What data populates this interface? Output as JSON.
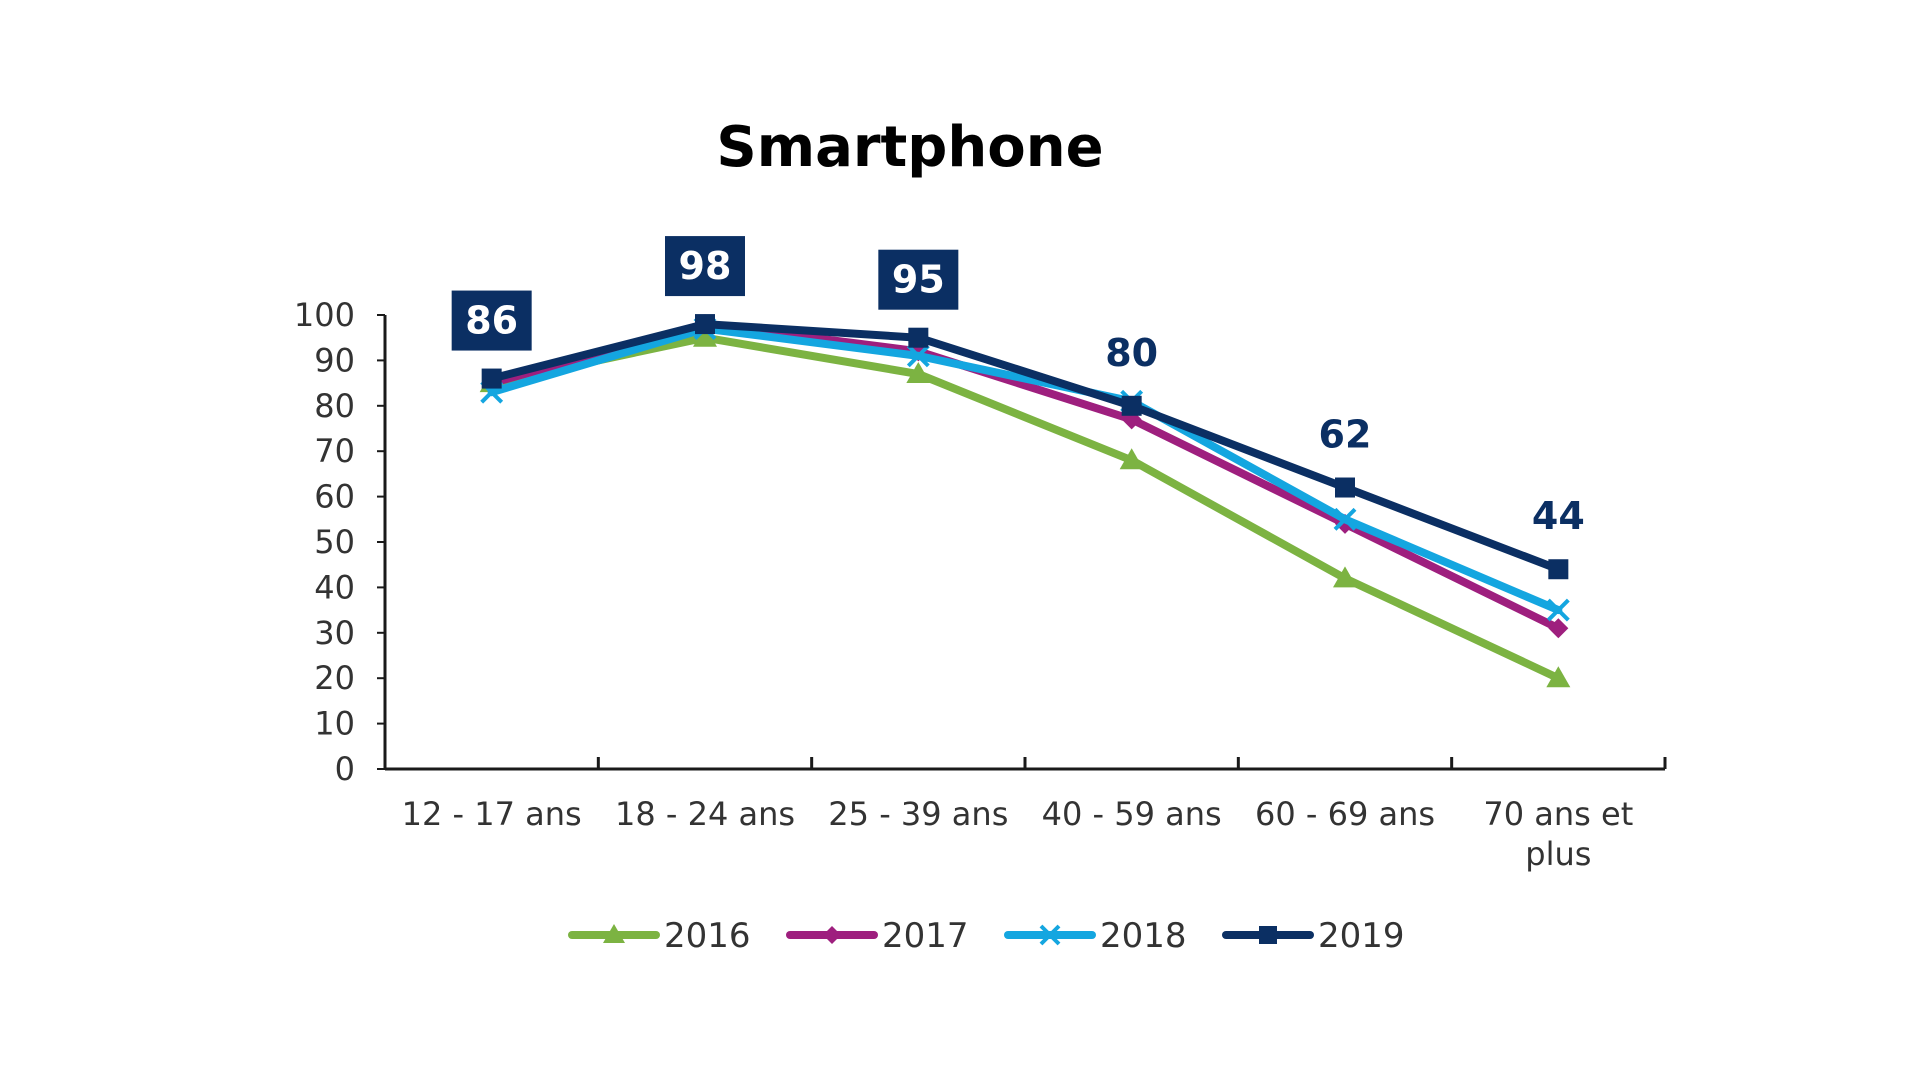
{
  "chart_data": {
    "type": "line",
    "title": "Smartphone",
    "xlabel": "",
    "ylabel": "",
    "categories": [
      "12 - 17 ans",
      "18 - 24 ans",
      "25 - 39 ans",
      "40 - 59 ans",
      "60 - 69 ans",
      "70 ans et plus"
    ],
    "ylim": [
      0,
      100
    ],
    "yticks": [
      0,
      10,
      20,
      30,
      40,
      50,
      60,
      70,
      80,
      90,
      100
    ],
    "grid": false,
    "legend": "bottom",
    "series": [
      {
        "name": "2016",
        "color": "#7cb342",
        "marker": "triangle",
        "values": [
          85,
          95,
          87,
          68,
          42,
          20
        ]
      },
      {
        "name": "2017",
        "color": "#9e1f7e",
        "marker": "diamond",
        "values": [
          85,
          98,
          92,
          77,
          54,
          31
        ]
      },
      {
        "name": "2018",
        "color": "#14a6e0",
        "marker": "x",
        "values": [
          83,
          97,
          91,
          81,
          55,
          35
        ]
      },
      {
        "name": "2019",
        "color": "#0b2f63",
        "marker": "square",
        "values": [
          86,
          98,
          95,
          80,
          62,
          44
        ]
      }
    ],
    "data_labels": [
      {
        "series": "2019",
        "category": "12 - 17 ans",
        "text": "86",
        "boxed": true
      },
      {
        "series": "2019",
        "category": "18 - 24 ans",
        "text": "98",
        "boxed": true
      },
      {
        "series": "2019",
        "category": "25 - 39 ans",
        "text": "95",
        "boxed": true
      },
      {
        "series": "2019",
        "category": "40 - 59 ans",
        "text": "80",
        "boxed": false
      },
      {
        "series": "2019",
        "category": "60 - 69 ans",
        "text": "62",
        "boxed": false
      },
      {
        "series": "2019",
        "category": "70 ans et plus",
        "text": "44",
        "boxed": false
      }
    ],
    "label_color": "#0b2f63"
  }
}
